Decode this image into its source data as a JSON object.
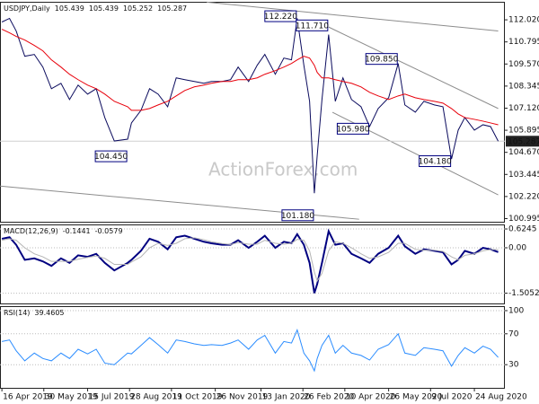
{
  "watermark": "ActionForex.com",
  "chart_data": [
    {
      "type": "line",
      "title": "USDJPY,Daily",
      "header_values": [
        105.439,
        105.439,
        105.252,
        105.287
      ],
      "x": [
        "2019-04-16",
        "2019-04-24",
        "2019-05-01",
        "2019-05-10",
        "2019-05-20",
        "2019-05-29",
        "2019-06-07",
        "2019-06-17",
        "2019-06-26",
        "2019-07-05",
        "2019-07-15",
        "2019-07-24",
        "2019-08-02",
        "2019-08-12",
        "2019-08-26",
        "2019-08-30",
        "2019-09-09",
        "2019-09-18",
        "2019-09-27",
        "2019-10-07",
        "2019-10-16",
        "2019-10-25",
        "2019-11-04",
        "2019-11-14",
        "2019-11-22",
        "2019-12-03",
        "2019-12-12",
        "2019-12-20",
        "2019-12-31",
        "2020-01-09",
        "2020-01-17",
        "2020-01-28",
        "2020-02-06",
        "2020-02-14",
        "2020-02-20",
        "2020-02-27",
        "2020-03-04",
        "2020-03-09",
        "2020-03-12",
        "2020-03-17",
        "2020-03-24",
        "2020-03-31",
        "2020-04-08",
        "2020-04-17",
        "2020-04-27",
        "2020-05-06",
        "2020-05-15",
        "2020-05-26",
        "2020-06-05",
        "2020-06-12",
        "2020-06-23",
        "2020-07-02",
        "2020-07-13",
        "2020-07-22",
        "2020-07-31",
        "2020-08-07",
        "2020-08-14",
        "2020-08-24",
        "2020-09-02",
        "2020-09-10",
        "2020-09-18"
      ],
      "series": [
        {
          "color": "#0b0b5e",
          "values": [
            111.9,
            112.1,
            111.4,
            110.0,
            110.1,
            109.4,
            108.2,
            108.5,
            107.6,
            108.4,
            107.9,
            108.2,
            106.6,
            105.3,
            105.4,
            106.3,
            107.0,
            108.2,
            107.9,
            107.2,
            108.8,
            108.7,
            108.6,
            108.5,
            108.6,
            108.6,
            108.7,
            109.4,
            108.6,
            109.5,
            110.1,
            109.0,
            109.9,
            109.8,
            112.1,
            109.5,
            107.5,
            102.4,
            104.5,
            107.6,
            111.2,
            107.5,
            108.8,
            107.6,
            107.2,
            106.1,
            107.1,
            107.7,
            109.6,
            107.3,
            106.9,
            107.5,
            107.3,
            107.2,
            104.3,
            105.9,
            106.6,
            105.9,
            106.2,
            106.1,
            105.287
          ]
        },
        {
          "color": "#e8000b",
          "values": [
            111.5,
            111.3,
            111.1,
            110.9,
            110.6,
            110.3,
            109.8,
            109.4,
            109.0,
            108.7,
            108.4,
            108.2,
            107.9,
            107.5,
            107.2,
            107.0,
            107.0,
            107.1,
            107.3,
            107.5,
            107.8,
            108.1,
            108.3,
            108.4,
            108.5,
            108.6,
            108.6,
            108.7,
            108.7,
            108.8,
            109.0,
            109.2,
            109.4,
            109.6,
            109.8,
            110.0,
            109.9,
            109.5,
            109.1,
            108.8,
            108.8,
            108.7,
            108.6,
            108.5,
            108.3,
            108.0,
            107.8,
            107.6,
            107.8,
            107.9,
            107.7,
            107.6,
            107.5,
            107.4,
            107.1,
            106.8,
            106.6,
            106.5,
            106.4,
            106.3,
            106.2
          ]
        }
      ],
      "ylim": [
        100.82,
        113.02
      ],
      "yticks": [
        {
          "value": 112.02,
          "label": "112.020"
        },
        110.795,
        {
          "value": 109.57,
          "label": "109.570"
        },
        108.345,
        {
          "value": 107.12,
          "label": "107.120"
        },
        105.895,
        {
          "value": 104.67,
          "label": "104.670"
        },
        103.445,
        {
          "value": 102.22,
          "label": "102.220"
        },
        100.995
      ],
      "annotations": [
        {
          "x": "2020-02-20",
          "value": 112.22,
          "label": "112.220"
        },
        {
          "x": "2020-03-24",
          "value": 111.71,
          "label": "111.710"
        },
        {
          "x": "2020-06-05",
          "value": 109.85,
          "label": "109.850"
        },
        {
          "x": "2020-05-06",
          "value": 105.98,
          "label": "105.980"
        },
        {
          "x": "2019-08-26",
          "value": 104.45,
          "label": "104.450"
        },
        {
          "x": "2020-03-09",
          "value": 101.18,
          "label": "101.180"
        },
        {
          "x": "2020-07-31",
          "value": 104.18,
          "label": "104.180"
        }
      ],
      "trendlines": [
        {
          "x": [
            "2019-11-17",
            "2020-09-18"
          ],
          "values": [
            113.0,
            111.4
          ]
        },
        {
          "x": [
            "2019-04-14",
            "2020-04-25"
          ],
          "values": [
            102.8,
            100.96
          ]
        },
        {
          "x": [
            "2020-03-24",
            "2020-09-18"
          ],
          "values": [
            111.62,
            107.1
          ]
        },
        {
          "x": [
            "2020-03-28",
            "2020-09-18"
          ],
          "values": [
            106.89,
            102.31
          ]
        }
      ],
      "trendline_color": "#8c8c8c",
      "grid": false
    },
    {
      "type": "line",
      "title": "MACD(12,26,9)",
      "header_values": [
        -0.1441,
        -0.0579
      ],
      "series": [
        {
          "color": "#000080",
          "values": [
            0.3,
            0.35,
            0.1,
            -0.4,
            -0.35,
            -0.45,
            -0.6,
            -0.35,
            -0.5,
            -0.25,
            -0.3,
            -0.2,
            -0.5,
            -0.75,
            -0.5,
            -0.4,
            -0.1,
            0.3,
            0.2,
            -0.05,
            0.35,
            0.4,
            0.3,
            0.2,
            0.15,
            0.1,
            0.1,
            0.25,
            0.0,
            0.2,
            0.4,
            0.0,
            0.2,
            0.15,
            0.45,
            0.1,
            -0.5,
            -1.5,
            -1.2,
            -0.5,
            0.55,
            0.1,
            0.15,
            -0.2,
            -0.35,
            -0.5,
            -0.2,
            0.0,
            0.4,
            0.05,
            -0.2,
            -0.05,
            -0.1,
            -0.15,
            -0.55,
            -0.4,
            -0.1,
            -0.2,
            0.0,
            -0.05,
            -0.1441
          ]
        },
        {
          "color": "#b4b4b4",
          "values": [
            0.25,
            0.3,
            0.25,
            0.0,
            -0.2,
            -0.3,
            -0.45,
            -0.45,
            -0.45,
            -0.38,
            -0.32,
            -0.27,
            -0.35,
            -0.55,
            -0.55,
            -0.47,
            -0.3,
            0.0,
            0.15,
            0.08,
            0.15,
            0.3,
            0.33,
            0.27,
            0.2,
            0.14,
            0.11,
            0.17,
            0.12,
            0.12,
            0.25,
            0.15,
            0.12,
            0.15,
            0.28,
            0.25,
            -0.1,
            -0.8,
            -1.1,
            -0.85,
            -0.1,
            0.2,
            0.15,
            0.0,
            -0.2,
            -0.35,
            -0.3,
            -0.15,
            0.15,
            0.15,
            -0.05,
            -0.08,
            -0.08,
            -0.12,
            -0.3,
            -0.4,
            -0.25,
            -0.2,
            -0.1,
            -0.06,
            -0.0579
          ]
        }
      ],
      "ylim": [
        -1.845,
        0.774
      ],
      "yticks": [
        0.6245,
        {
          "value": 0,
          "label": "0.00"
        },
        -1.5052
      ],
      "grid": true
    },
    {
      "type": "line",
      "title": "RSI(14)",
      "header_values": [
        39.4605
      ],
      "series": [
        {
          "color": "#2a8cff",
          "values": [
            60,
            62,
            48,
            35,
            45,
            38,
            35,
            45,
            38,
            50,
            44,
            50,
            32,
            30,
            45,
            44,
            55,
            65,
            56,
            45,
            62,
            60,
            57,
            55,
            56,
            55,
            58,
            62,
            50,
            62,
            68,
            45,
            60,
            58,
            75,
            45,
            35,
            22,
            38,
            55,
            68,
            45,
            55,
            45,
            42,
            36,
            50,
            56,
            70,
            45,
            42,
            52,
            50,
            48,
            28,
            42,
            52,
            45,
            54,
            50,
            39.4605
          ]
        }
      ],
      "ylim": [
        0,
        105.8
      ],
      "yticks": [
        100,
        70,
        30
      ],
      "grid": true,
      "xlim": [
        "2019-04-14",
        "2020-09-25"
      ],
      "xticks": [
        {
          "value": "2019-04-16",
          "label": "16 Apr 2019"
        },
        {
          "value": "2019-05-30",
          "label": "30 May 2019"
        },
        {
          "value": "2019-07-15",
          "label": "15 Jul 2019"
        },
        {
          "value": "2019-08-28",
          "label": "28 Aug 2019"
        },
        {
          "value": "2019-10-11",
          "label": "11 Oct 2019"
        },
        {
          "value": "2019-11-26",
          "label": "26 Nov 2019"
        },
        {
          "value": "2020-01-13",
          "label": "13 Jan 2020"
        },
        {
          "value": "2020-02-26",
          "label": "26 Feb 2020"
        },
        {
          "value": "2020-04-10",
          "label": "10 Apr 2020"
        },
        {
          "value": "2020-05-26",
          "label": "26 May 2020"
        },
        {
          "value": "2020-07-09",
          "label": "9 Jul 2020"
        },
        {
          "value": "2020-08-24",
          "label": "24 Aug 2020"
        }
      ]
    }
  ]
}
